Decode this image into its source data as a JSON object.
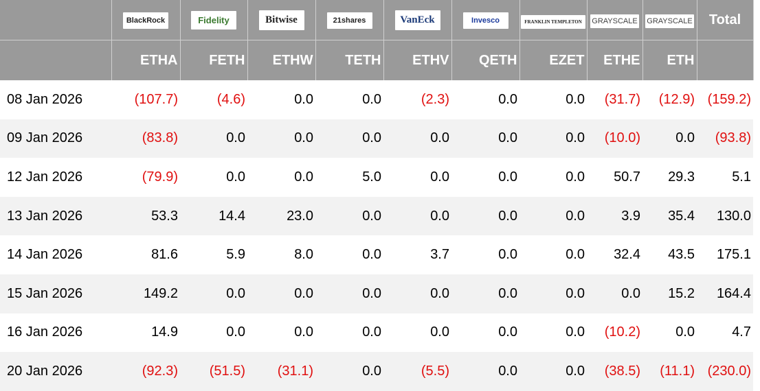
{
  "table": {
    "issuers": [
      "BlackRock",
      "Fidelity",
      "Bitwise",
      "21shares",
      "VanEck",
      "Invesco",
      "FRANKLIN TEMPLETON",
      "GRAYSCALE",
      "GRAYSCALE"
    ],
    "total_header": "Total",
    "tickers": [
      "ETHA",
      "FETH",
      "ETHW",
      "TETH",
      "ETHV",
      "QETH",
      "EZET",
      "ETHE",
      "ETH"
    ],
    "rows": [
      [
        "08 Jan 2026",
        "(107.7)",
        "(4.6)",
        "0.0",
        "0.0",
        "(2.3)",
        "0.0",
        "0.0",
        "(31.7)",
        "(12.9)",
        "(159.2)"
      ],
      [
        "09 Jan 2026",
        "(83.8)",
        "0.0",
        "0.0",
        "0.0",
        "0.0",
        "0.0",
        "0.0",
        "(10.0)",
        "0.0",
        "(93.8)"
      ],
      [
        "12 Jan 2026",
        "(79.9)",
        "0.0",
        "0.0",
        "5.0",
        "0.0",
        "0.0",
        "0.0",
        "50.7",
        "29.3",
        "5.1"
      ],
      [
        "13 Jan 2026",
        "53.3",
        "14.4",
        "23.0",
        "0.0",
        "0.0",
        "0.0",
        "0.0",
        "3.9",
        "35.4",
        "130.0"
      ],
      [
        "14 Jan 2026",
        "81.6",
        "5.9",
        "8.0",
        "0.0",
        "3.7",
        "0.0",
        "0.0",
        "32.4",
        "43.5",
        "175.1"
      ],
      [
        "15 Jan 2026",
        "149.2",
        "0.0",
        "0.0",
        "0.0",
        "0.0",
        "0.0",
        "0.0",
        "0.0",
        "15.2",
        "164.4"
      ],
      [
        "16 Jan 2026",
        "14.9",
        "0.0",
        "0.0",
        "0.0",
        "0.0",
        "0.0",
        "0.0",
        "(10.2)",
        "0.0",
        "4.7"
      ],
      [
        "20 Jan 2026",
        "(92.3)",
        "(51.5)",
        "(31.1)",
        "0.0",
        "(5.5)",
        "0.0",
        "0.0",
        "(38.5)",
        "(11.1)",
        "(230.0)"
      ]
    ]
  }
}
